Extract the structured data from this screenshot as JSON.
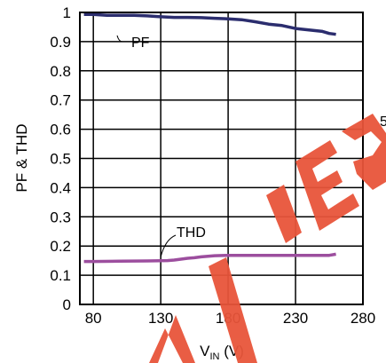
{
  "chart_data": {
    "type": "line",
    "xlabel_main": "V",
    "xlabel_sub": "IN",
    "xlabel_unit": " (V)",
    "ylabel": "PF & THD",
    "xlim": [
      70,
      280
    ],
    "ylim": [
      0,
      1
    ],
    "x_ticks": [
      "80",
      "130",
      "180",
      "230",
      "280"
    ],
    "y_ticks": [
      "0",
      "0.1",
      "0.2",
      "0.3",
      "0.4",
      "0.5",
      "0.6",
      "0.7",
      "0.8",
      "0.9",
      "1"
    ],
    "grid": true,
    "series": [
      {
        "name": "PF",
        "color": "#2b2d6e",
        "x": [
          73,
          80,
          90,
          100,
          110,
          120,
          130,
          140,
          150,
          160,
          170,
          180,
          190,
          200,
          210,
          220,
          230,
          240,
          250,
          255,
          260
        ],
        "y": [
          0.993,
          0.993,
          0.99,
          0.99,
          0.99,
          0.988,
          0.985,
          0.983,
          0.983,
          0.982,
          0.98,
          0.978,
          0.975,
          0.968,
          0.96,
          0.955,
          0.945,
          0.94,
          0.935,
          0.928,
          0.925
        ]
      },
      {
        "name": "THD",
        "color": "#9c4e9e",
        "x": [
          73,
          80,
          100,
          120,
          135,
          140,
          150,
          155,
          160,
          165,
          170,
          180,
          200,
          220,
          240,
          255,
          260
        ],
        "y": [
          0.147,
          0.147,
          0.148,
          0.149,
          0.15,
          0.152,
          0.158,
          0.16,
          0.163,
          0.165,
          0.167,
          0.168,
          0.168,
          0.168,
          0.168,
          0.168,
          0.172
        ]
      }
    ],
    "annotations": [
      {
        "text": "PF",
        "series": "PF"
      },
      {
        "text": "THD",
        "series": "THD"
      }
    ],
    "watermark": "NOT RECOMMENDED",
    "edge_fragment": "5"
  }
}
